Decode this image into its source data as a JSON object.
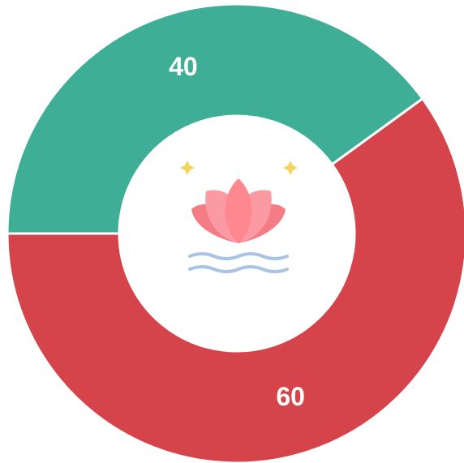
{
  "chart_data": {
    "type": "donut",
    "values": [
      40,
      60
    ],
    "colors": [
      "#3fae96",
      "#d6444b"
    ]
  }
}
